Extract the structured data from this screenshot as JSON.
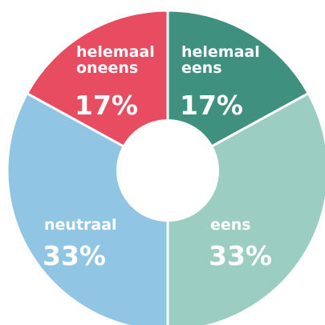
{
  "chart_data": {
    "type": "pie",
    "donut": true,
    "slices": [
      {
        "label_lines": [
          "helemaal",
          "eens"
        ],
        "value": 17,
        "percent_label": "17%",
        "color": "#3f907f"
      },
      {
        "label_lines": [
          "eens"
        ],
        "value": 33,
        "percent_label": "33%",
        "color": "#9ccdc2"
      },
      {
        "label_lines": [
          "neutraal"
        ],
        "value": 33,
        "percent_label": "33%",
        "color": "#91c5e4"
      },
      {
        "label_lines": [
          "helemaal",
          "oneens"
        ],
        "value": 17,
        "percent_label": "17%",
        "color": "#e84c61"
      }
    ]
  }
}
